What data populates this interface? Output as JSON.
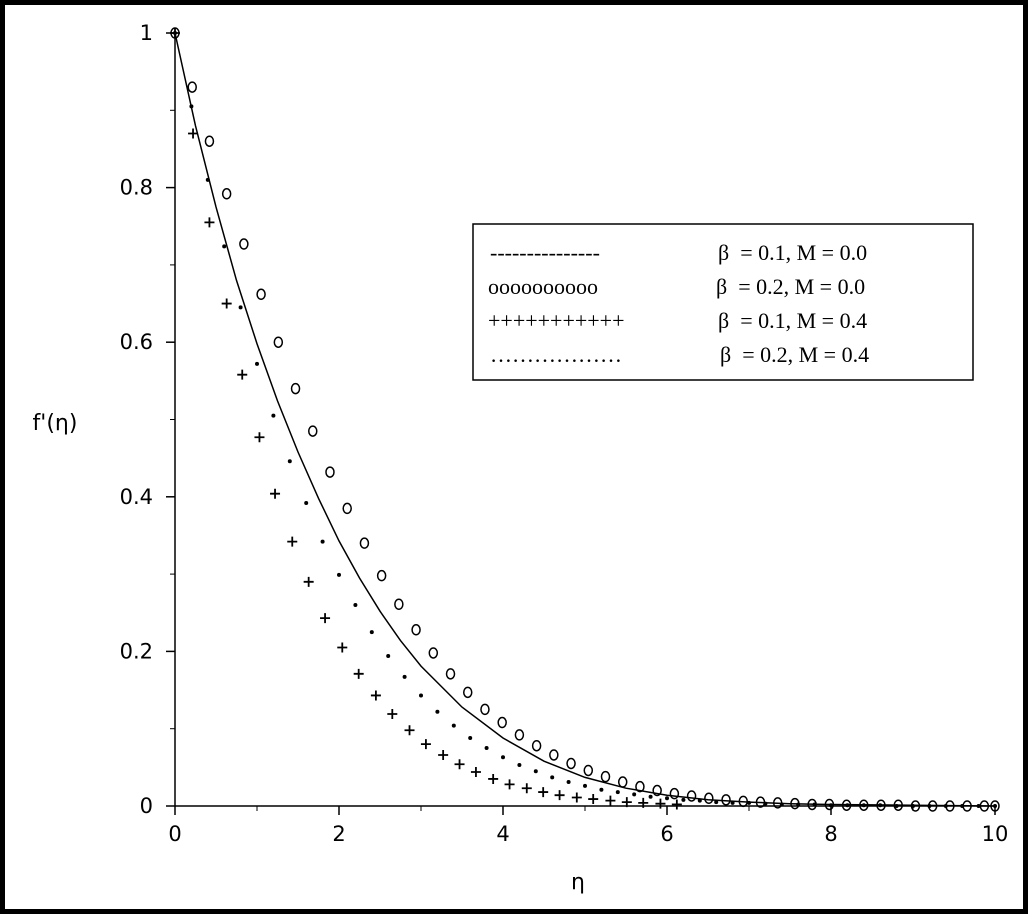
{
  "chart_data": {
    "type": "line",
    "xlabel": "η",
    "ylabel": "f'(η)",
    "xlim": [
      0,
      10
    ],
    "ylim": [
      0,
      1
    ],
    "xticks": [
      "0",
      "2",
      "4",
      "6",
      "8",
      "10"
    ],
    "yticks": [
      "0",
      "0.2",
      "0.4",
      "0.6",
      "0.8",
      "1"
    ],
    "grid": false,
    "legend_position": "upper-right",
    "legend": [
      {
        "marker": "---------------",
        "label": "β  = 0.1, M = 0.0",
        "style": "solid"
      },
      {
        "marker": "oooooooooo",
        "label": "β  = 0.2, M = 0.0",
        "style": "circle"
      },
      {
        "marker": "+++++++++++",
        "label": "β  = 0.1, M = 0.4",
        "style": "plus"
      },
      {
        "marker": "………………",
        "label": "β  = 0.2, M = 0.4",
        "style": "dot"
      }
    ],
    "series": [
      {
        "style": "solid",
        "x": [
          0,
          0.25,
          0.5,
          0.75,
          1,
          1.25,
          1.5,
          1.75,
          2,
          2.25,
          2.5,
          2.75,
          3,
          3.5,
          4,
          4.5,
          5,
          5.5,
          6,
          6.5,
          7,
          7.5,
          8,
          9,
          10
        ],
        "y": [
          1.0,
          0.88,
          0.775,
          0.68,
          0.598,
          0.524,
          0.458,
          0.398,
          0.343,
          0.295,
          0.252,
          0.214,
          0.181,
          0.128,
          0.088,
          0.058,
          0.037,
          0.023,
          0.014,
          0.008,
          0.005,
          0.003,
          0.002,
          0.001,
          0.0
        ]
      },
      {
        "style": "circle",
        "x": [
          0,
          0.21,
          0.42,
          0.63,
          0.84,
          1.05,
          1.26,
          1.47,
          1.68,
          1.89,
          2.1,
          2.31,
          2.52,
          2.73,
          2.94,
          3.15,
          3.36,
          3.57,
          3.78,
          3.99,
          4.2,
          4.41,
          4.62,
          4.83,
          5.04,
          5.25,
          5.46,
          5.67,
          5.88,
          6.09,
          6.3,
          6.51,
          6.72,
          6.93,
          7.14,
          7.35,
          7.56,
          7.77,
          7.98,
          8.19,
          8.4,
          8.61,
          8.82,
          9.03,
          9.24,
          9.45,
          9.66,
          9.87,
          10.0
        ],
        "y": [
          1.0,
          0.93,
          0.86,
          0.792,
          0.727,
          0.662,
          0.6,
          0.54,
          0.485,
          0.432,
          0.385,
          0.34,
          0.298,
          0.261,
          0.228,
          0.198,
          0.171,
          0.147,
          0.125,
          0.108,
          0.092,
          0.078,
          0.066,
          0.055,
          0.046,
          0.038,
          0.031,
          0.025,
          0.02,
          0.016,
          0.013,
          0.01,
          0.008,
          0.006,
          0.005,
          0.004,
          0.003,
          0.002,
          0.002,
          0.001,
          0.001,
          0.001,
          0.001,
          0.0,
          0.0,
          0.0,
          0.0,
          0.0,
          0.0
        ]
      },
      {
        "style": "plus",
        "x": [
          0,
          0.22,
          0.42,
          0.63,
          0.82,
          1.03,
          1.22,
          1.43,
          1.63,
          1.83,
          2.04,
          2.24,
          2.45,
          2.65,
          2.86,
          3.06,
          3.27,
          3.47,
          3.67,
          3.88,
          4.08,
          4.29,
          4.49,
          4.69,
          4.9,
          5.1,
          5.31,
          5.51,
          5.71,
          5.92,
          6.12
        ],
        "y": [
          1.0,
          0.87,
          0.755,
          0.65,
          0.558,
          0.477,
          0.404,
          0.342,
          0.29,
          0.243,
          0.205,
          0.171,
          0.143,
          0.119,
          0.098,
          0.08,
          0.066,
          0.054,
          0.044,
          0.035,
          0.028,
          0.023,
          0.018,
          0.014,
          0.011,
          0.009,
          0.007,
          0.005,
          0.004,
          0.003,
          0.002
        ]
      },
      {
        "style": "dot",
        "x": [
          0,
          0.2,
          0.4,
          0.6,
          0.8,
          1.0,
          1.2,
          1.4,
          1.6,
          1.8,
          2.0,
          2.2,
          2.4,
          2.6,
          2.8,
          3.0,
          3.2,
          3.4,
          3.6,
          3.8,
          4.0,
          4.2,
          4.4,
          4.6,
          4.8,
          5.0,
          5.2,
          5.4,
          5.6,
          5.8,
          6.0,
          6.2,
          6.4,
          6.6,
          6.8,
          7.0,
          7.2,
          7.4,
          7.6,
          7.8,
          8.0,
          8.2,
          8.4,
          8.6,
          8.8,
          9.0,
          9.2,
          9.4,
          9.6,
          9.8,
          10.0
        ],
        "y": [
          1.0,
          0.905,
          0.81,
          0.724,
          0.645,
          0.572,
          0.505,
          0.446,
          0.392,
          0.342,
          0.299,
          0.26,
          0.225,
          0.194,
          0.167,
          0.143,
          0.122,
          0.104,
          0.088,
          0.075,
          0.063,
          0.053,
          0.045,
          0.037,
          0.031,
          0.026,
          0.021,
          0.018,
          0.015,
          0.012,
          0.01,
          0.008,
          0.007,
          0.005,
          0.004,
          0.004,
          0.003,
          0.002,
          0.002,
          0.002,
          0.001,
          0.001,
          0.001,
          0.001,
          0.0,
          0.0,
          0.0,
          0.0,
          0.0,
          0.0,
          0.0
        ]
      }
    ]
  }
}
